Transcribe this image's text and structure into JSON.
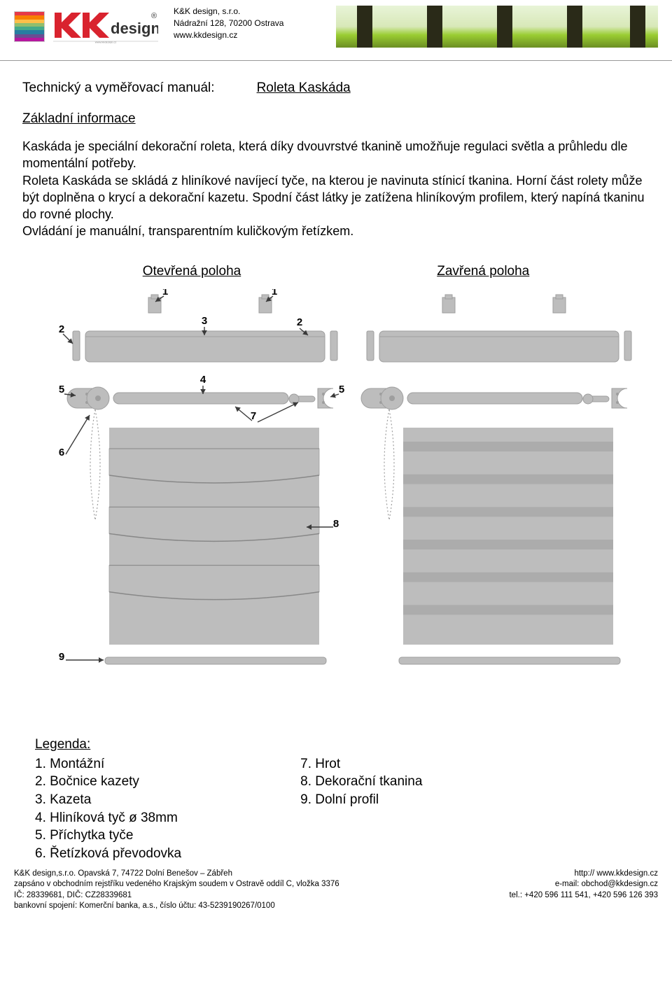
{
  "header": {
    "company_name": "K&K design, s.r.o.",
    "address": "Nádražní 128, 70200 Ostrava",
    "website": "www.kkdesign.cz",
    "color_bars": [
      "#e63946",
      "#f77f00",
      "#fcbf49",
      "#90be6d",
      "#43aa8b",
      "#277da1",
      "#6a4c93",
      "#b5179e"
    ],
    "logo_red": "#d9232e",
    "logo_text_design": "design",
    "logo_tm": "®"
  },
  "title": {
    "label": "Technický a vyměřovací manuál:",
    "product": "Roleta Kaskáda"
  },
  "intro_heading": "Základní informace",
  "body_text": "Kaskáda je speciální dekorační roleta, která díky dvouvrstvé tkanině umožňuje regulaci světla a průhledu dle momentální potřeby.\nRoleta Kaskáda se skládá z hliníkové navíjecí tyče, na kterou je navinuta stínicí tkanina. Horní část rolety může být doplněna o krycí a dekorační kazetu. Spodní část látky je zatížena hliníkovým profilem, který napíná tkaninu do rovné plochy.\nOvládání je manuální, transparentním kuličkovým řetízkem.",
  "positions": {
    "open": "Otevřená poloha",
    "closed": "Zavřená poloha"
  },
  "diagram": {
    "grey": "#bdbdbd",
    "grey_dark": "#9e9e9e",
    "line": "#3a3a3a",
    "labels": [
      "1",
      "1",
      "2",
      "3",
      "2",
      "5",
      "4",
      "5",
      "6",
      "7",
      "8",
      "9"
    ]
  },
  "legend": {
    "title": "Legenda:",
    "left": [
      {
        "n": "1",
        "t": "Montážní"
      },
      {
        "n": "2",
        "t": "Bočnice kazety"
      },
      {
        "n": "3",
        "t": "Kazeta"
      },
      {
        "n": "4",
        "t": "Hliníková tyč ø 38mm"
      },
      {
        "n": "5",
        "t": "Příchytka tyče"
      },
      {
        "n": "6",
        "t": "Řetízková převodovka"
      }
    ],
    "right": [
      {
        "n": "7",
        "t": "Hrot"
      },
      {
        "n": "8",
        "t": "Dekorační tkanina"
      },
      {
        "n": "9",
        "t": "Dolní profil"
      }
    ]
  },
  "footer": {
    "left": [
      "K&K design,s.r.o. Opavská 7, 74722 Dolní Benešov – Zábřeh",
      "zapsáno v obchodním rejstříku vedeného Krajským soudem v Ostravě oddíl C, vložka 3376",
      "IČ: 28339681, DIČ: CZ28339681",
      "bankovní spojení: Komerční banka, a.s., číslo účtu: 43-5239190267/0100"
    ],
    "right": [
      "http:// www.kkdesign.cz",
      "e-mail: obchod@kkdesign.cz",
      "tel.: +420 596 111 541, +420 596 126 393"
    ]
  }
}
